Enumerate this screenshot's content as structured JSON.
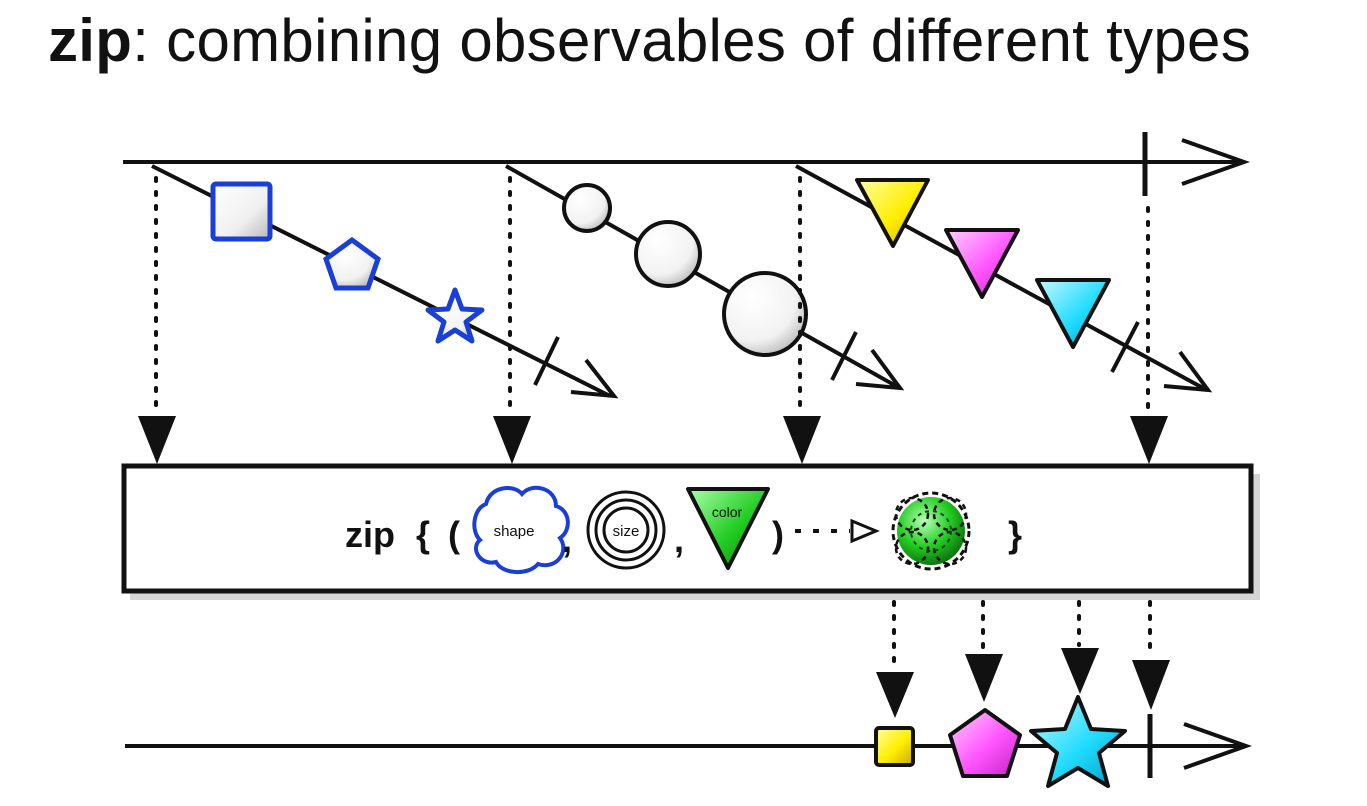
{
  "title": {
    "keyword": "zip",
    "rest": ": combining observables of different types"
  },
  "operator": {
    "keyword": "zip",
    "open_brace": "{",
    "open_paren": "(",
    "comma_1": ",",
    "comma_2": ",",
    "close_paren": ")",
    "close_brace": "}",
    "arg_shape": "shape",
    "arg_size": "size",
    "arg_color": "color"
  },
  "colors": {
    "line": "#111111",
    "shape_stroke": "#1a3fd6",
    "yellow": "#ffee00",
    "magenta": "#ff55ff",
    "cyan": "#22ddff",
    "green": "#22cc22",
    "white_fill": "#ffffff"
  },
  "input_streams": [
    {
      "name": "shapes",
      "items": [
        "square-icon",
        "pentagon-icon",
        "star-icon"
      ]
    },
    {
      "name": "sizes",
      "items": [
        "small-circle-icon",
        "medium-circle-icon",
        "large-circle-icon"
      ]
    },
    {
      "name": "colors",
      "items": [
        "yellow-triangle-icon",
        "magenta-triangle-icon",
        "cyan-triangle-icon"
      ]
    }
  ],
  "output_items": [
    "yellow-small-square-icon",
    "magenta-medium-pentagon-icon",
    "cyan-large-star-icon"
  ]
}
